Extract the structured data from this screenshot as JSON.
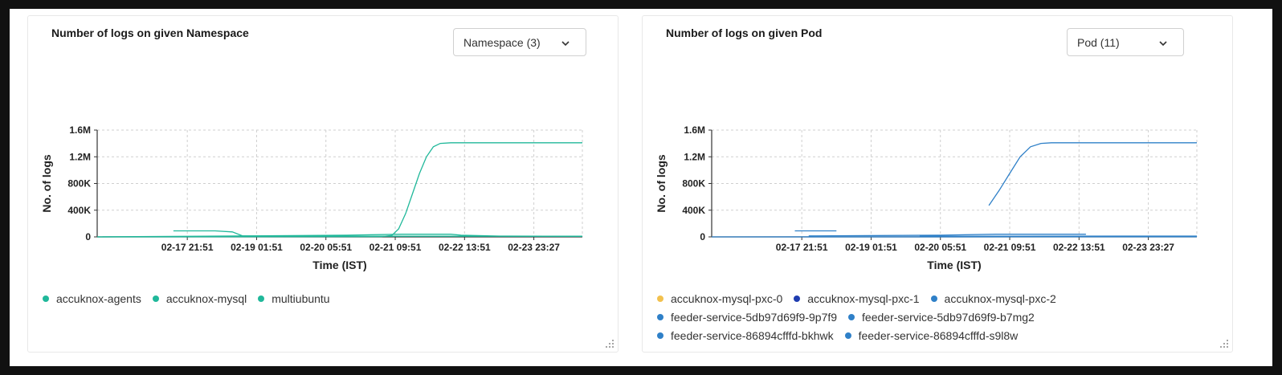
{
  "panels": [
    {
      "title": "Number of logs on given Namespace",
      "dropdown": "Namespace (3)",
      "legend_rows": [
        [
          0,
          1,
          2
        ]
      ],
      "chart_data": {
        "type": "line",
        "ylabel": "No. of logs",
        "xlabel": "Time (IST)",
        "ylim": [
          0,
          1600000
        ],
        "y_ticks": [
          {
            "v": 0,
            "label": "0"
          },
          {
            "v": 400000,
            "label": "400K"
          },
          {
            "v": 800000,
            "label": "800K"
          },
          {
            "v": 1200000,
            "label": "1.2M"
          },
          {
            "v": 1600000,
            "label": "1.6M"
          }
        ],
        "x_range": [
          -0.8,
          6.2
        ],
        "x_ticks": [
          {
            "v": 0.5,
            "label": "02-17 21:51"
          },
          {
            "v": 1.5,
            "label": "02-19 01:51"
          },
          {
            "v": 2.5,
            "label": "02-20 05:51"
          },
          {
            "v": 3.5,
            "label": "02-21 09:51"
          },
          {
            "v": 4.5,
            "label": "02-22 13:51"
          },
          {
            "v": 5.5,
            "label": "02-23 23:27"
          }
        ],
        "grid": true,
        "legend_position": "bottom",
        "series": [
          {
            "name": "accuknox-agents",
            "color": "#20b89a",
            "points": [
              [
                0.3,
                90000
              ],
              [
                0.9,
                90000
              ],
              [
                1.15,
                75000
              ],
              [
                1.3,
                15000
              ],
              [
                1.6,
                10000
              ],
              [
                6.2,
                10000
              ]
            ]
          },
          {
            "name": "accuknox-mysql",
            "color": "#20b89a",
            "points": [
              [
                -0.8,
                0
              ],
              [
                2.8,
                25000
              ],
              [
                3.6,
                40000
              ],
              [
                4.3,
                40000
              ],
              [
                4.45,
                25000
              ],
              [
                5,
                12000
              ],
              [
                6.2,
                8000
              ]
            ]
          },
          {
            "name": "multiubuntu",
            "color": "#20b89a",
            "points": [
              [
                -0.8,
                0
              ],
              [
                3.3,
                5000
              ],
              [
                3.45,
                20000
              ],
              [
                3.55,
                120000
              ],
              [
                3.65,
                350000
              ],
              [
                3.75,
                650000
              ],
              [
                3.85,
                950000
              ],
              [
                3.95,
                1200000
              ],
              [
                4.05,
                1350000
              ],
              [
                4.15,
                1400000
              ],
              [
                4.3,
                1410000
              ],
              [
                6.2,
                1410000
              ]
            ]
          }
        ]
      }
    },
    {
      "title": "Number of logs on given Pod",
      "dropdown": "Pod (11)",
      "legend_rows": [
        [
          0,
          1,
          2
        ],
        [
          3,
          4
        ],
        [
          5,
          6
        ]
      ],
      "chart_data": {
        "type": "line",
        "ylabel": "No. of logs",
        "xlabel": "Time (IST)",
        "ylim": [
          0,
          1600000
        ],
        "y_ticks": [
          {
            "v": 0,
            "label": "0"
          },
          {
            "v": 400000,
            "label": "400K"
          },
          {
            "v": 800000,
            "label": "800K"
          },
          {
            "v": 1200000,
            "label": "1.2M"
          },
          {
            "v": 1600000,
            "label": "1.6M"
          }
        ],
        "x_range": [
          -0.8,
          6.2
        ],
        "x_ticks": [
          {
            "v": 0.5,
            "label": "02-17 21:51"
          },
          {
            "v": 1.5,
            "label": "02-19 01:51"
          },
          {
            "v": 2.5,
            "label": "02-20 05:51"
          },
          {
            "v": 3.5,
            "label": "02-21 09:51"
          },
          {
            "v": 4.5,
            "label": "02-22 13:51"
          },
          {
            "v": 5.5,
            "label": "02-23 23:27"
          }
        ],
        "grid": true,
        "legend_position": "bottom",
        "series": [
          {
            "name": "accuknox-mysql-pxc-0",
            "color": "#f2c14e",
            "points": []
          },
          {
            "name": "accuknox-mysql-pxc-1",
            "color": "#1f3db0",
            "points": []
          },
          {
            "name": "accuknox-mysql-pxc-2",
            "color": "#2f80c8",
            "points": [
              [
                0.4,
                90000
              ],
              [
                1,
                90000
              ]
            ]
          },
          {
            "name": "feeder-service-5db97d69f9-9p7f9",
            "color": "#2f80c8",
            "points": [
              [
                0.6,
                15000
              ],
              [
                2.5,
                25000
              ],
              [
                3.3,
                40000
              ],
              [
                4.6,
                40000
              ]
            ]
          },
          {
            "name": "feeder-service-5db97d69f9-b7mg2",
            "color": "#2f80c8",
            "points": [
              [
                3.2,
                470000
              ],
              [
                3.35,
                700000
              ],
              [
                3.5,
                950000
              ],
              [
                3.65,
                1200000
              ],
              [
                3.8,
                1350000
              ],
              [
                3.95,
                1400000
              ],
              [
                4.1,
                1410000
              ],
              [
                6.2,
                1410000
              ]
            ]
          },
          {
            "name": "feeder-service-86894cfffd-bkhwk",
            "color": "#2f80c8",
            "points": [
              [
                2.2,
                10000
              ],
              [
                6.2,
                12000
              ]
            ]
          },
          {
            "name": "feeder-service-86894cfffd-s9l8w",
            "color": "#2f80c8",
            "points": [
              [
                -0.8,
                0
              ],
              [
                6.2,
                3000
              ]
            ]
          }
        ]
      }
    }
  ]
}
